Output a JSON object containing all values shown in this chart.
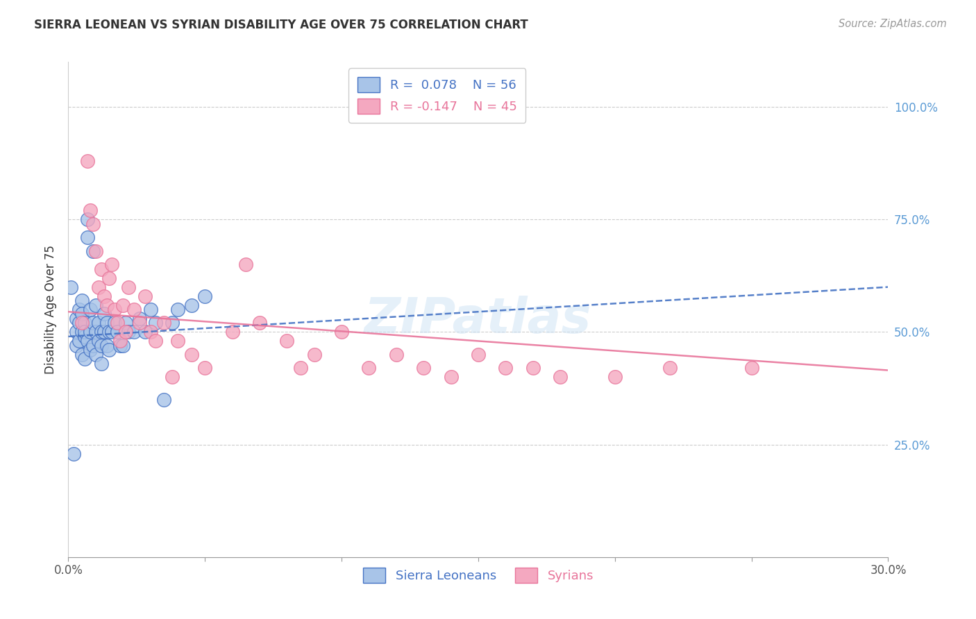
{
  "title": "SIERRA LEONEAN VS SYRIAN DISABILITY AGE OVER 75 CORRELATION CHART",
  "source": "Source: ZipAtlas.com",
  "ylabel": "Disability Age Over 75",
  "xlim": [
    0.0,
    0.3
  ],
  "ylim": [
    0.0,
    1.1
  ],
  "sierra_color": "#a8c4e8",
  "syrian_color": "#f4a8c0",
  "sierra_line_color": "#4472c4",
  "syrian_line_color": "#e8749a",
  "sierra_R": 0.078,
  "sierra_N": 56,
  "syrian_R": -0.147,
  "syrian_N": 45,
  "legend_label_1": "Sierra Leoneans",
  "legend_label_2": "Syrians",
  "watermark": "ZIPatlas",
  "background_color": "#ffffff",
  "sierra_x": [
    0.001,
    0.002,
    0.003,
    0.003,
    0.003,
    0.004,
    0.004,
    0.004,
    0.005,
    0.005,
    0.005,
    0.005,
    0.006,
    0.006,
    0.006,
    0.006,
    0.007,
    0.007,
    0.007,
    0.008,
    0.008,
    0.008,
    0.009,
    0.009,
    0.009,
    0.01,
    0.01,
    0.01,
    0.011,
    0.011,
    0.012,
    0.012,
    0.012,
    0.013,
    0.013,
    0.014,
    0.014,
    0.015,
    0.015,
    0.016,
    0.017,
    0.018,
    0.019,
    0.02,
    0.021,
    0.022,
    0.024,
    0.026,
    0.028,
    0.03,
    0.032,
    0.035,
    0.038,
    0.04,
    0.045,
    0.05
  ],
  "sierra_y": [
    0.6,
    0.23,
    0.5,
    0.47,
    0.53,
    0.55,
    0.48,
    0.52,
    0.57,
    0.5,
    0.45,
    0.54,
    0.49,
    0.52,
    0.44,
    0.5,
    0.75,
    0.71,
    0.48,
    0.55,
    0.5,
    0.46,
    0.47,
    0.52,
    0.68,
    0.56,
    0.5,
    0.45,
    0.52,
    0.48,
    0.5,
    0.43,
    0.47,
    0.5,
    0.54,
    0.47,
    0.52,
    0.5,
    0.46,
    0.5,
    0.52,
    0.5,
    0.47,
    0.47,
    0.52,
    0.5,
    0.5,
    0.53,
    0.5,
    0.55,
    0.52,
    0.35,
    0.52,
    0.55,
    0.56,
    0.58
  ],
  "syrian_x": [
    0.005,
    0.007,
    0.008,
    0.009,
    0.01,
    0.011,
    0.012,
    0.013,
    0.014,
    0.015,
    0.016,
    0.017,
    0.018,
    0.019,
    0.02,
    0.021,
    0.022,
    0.024,
    0.026,
    0.028,
    0.03,
    0.032,
    0.035,
    0.038,
    0.04,
    0.045,
    0.05,
    0.06,
    0.065,
    0.07,
    0.08,
    0.085,
    0.09,
    0.1,
    0.11,
    0.12,
    0.13,
    0.14,
    0.15,
    0.16,
    0.17,
    0.18,
    0.2,
    0.22,
    0.25
  ],
  "syrian_y": [
    0.52,
    0.88,
    0.77,
    0.74,
    0.68,
    0.6,
    0.64,
    0.58,
    0.56,
    0.62,
    0.65,
    0.55,
    0.52,
    0.48,
    0.56,
    0.5,
    0.6,
    0.55,
    0.52,
    0.58,
    0.5,
    0.48,
    0.52,
    0.4,
    0.48,
    0.45,
    0.42,
    0.5,
    0.65,
    0.52,
    0.48,
    0.42,
    0.45,
    0.5,
    0.42,
    0.45,
    0.42,
    0.4,
    0.45,
    0.42,
    0.42,
    0.4,
    0.4,
    0.42,
    0.42
  ]
}
